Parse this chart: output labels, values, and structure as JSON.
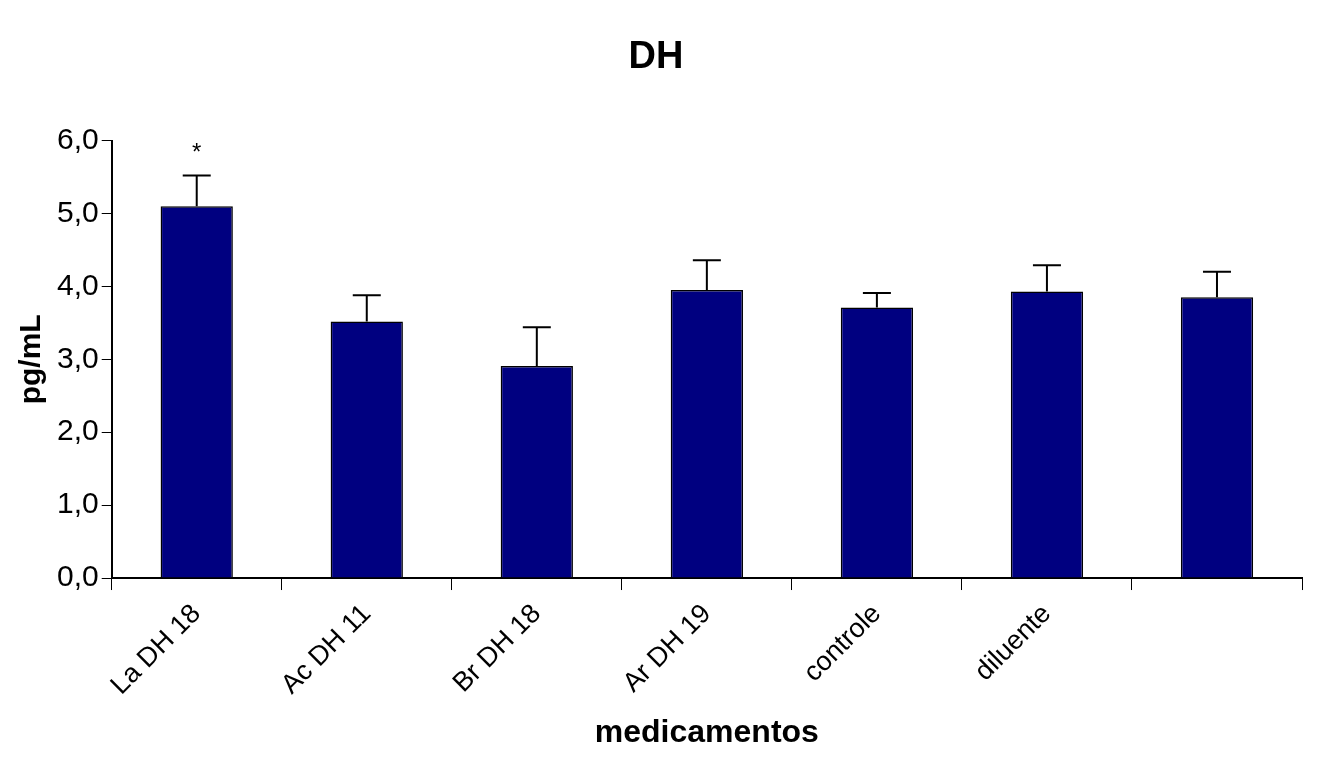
{
  "chart_data": {
    "type": "bar",
    "title": "DH",
    "xlabel": "medicamentos",
    "ylabel": "pg/mL",
    "categories": [
      "La DH 18",
      "Ac DH 11",
      "Br DH 18",
      "Ar DH 19",
      "controle",
      "diluente",
      null
    ],
    "values": [
      5.1,
      3.52,
      2.91,
      3.95,
      3.71,
      3.93,
      3.85
    ],
    "errors": [
      [
        5.1,
        5.52
      ],
      [
        3.52,
        3.88
      ],
      [
        2.91,
        3.44
      ],
      [
        3.95,
        4.36
      ],
      [
        3.71,
        3.91
      ],
      [
        3.93,
        4.29
      ],
      [
        3.85,
        4.2
      ]
    ],
    "color": "#000080",
    "ylim": [
      0,
      6
    ],
    "yticks": [
      {
        "value": 0,
        "label": "0,0"
      },
      {
        "value": 1,
        "label": "1,0"
      },
      {
        "value": 2,
        "label": "2,0"
      },
      {
        "value": 3,
        "label": "3,0"
      },
      {
        "value": 4,
        "label": "4,0"
      },
      {
        "value": 5,
        "label": "5,0"
      },
      {
        "value": 6,
        "label": "6,0"
      }
    ],
    "annotations": [
      "*"
    ],
    "grid": false,
    "legend": false
  }
}
